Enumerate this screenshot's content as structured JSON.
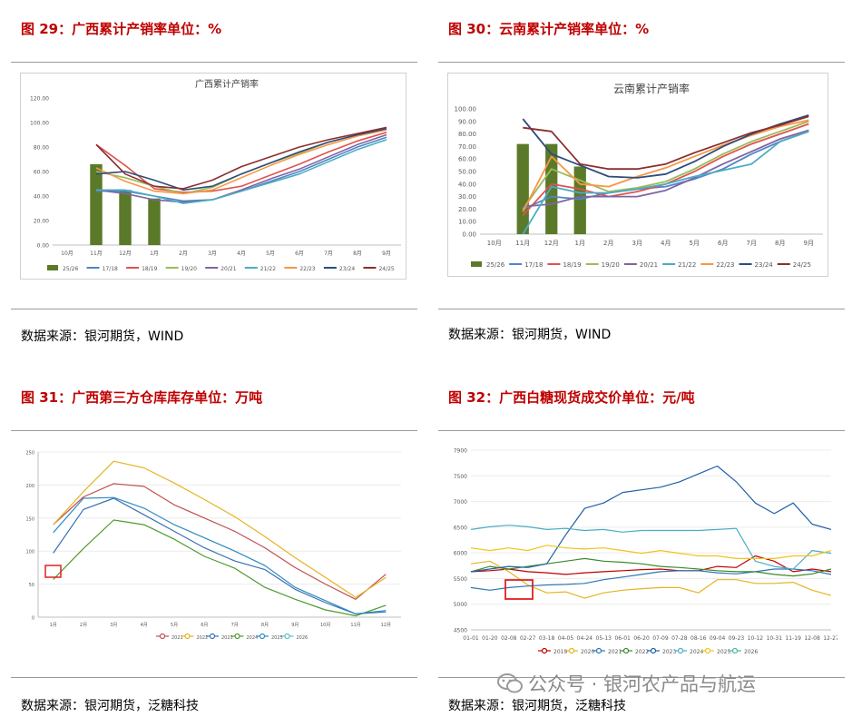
{
  "figures": [
    {
      "title": "图 29：广西累计产销率单位：%",
      "source": "数据来源：银河期货，WIND"
    },
    {
      "title": "图 30：云南累计产销率单位：%",
      "source": "数据来源：银河期货，WIND"
    },
    {
      "title": "图 31：广西第三方仓库库存单位：万吨",
      "source": "数据来源：银河期货，泛糖科技"
    },
    {
      "title": "图 32：广西白糖现货成交价单位：元/吨",
      "source": "数据来源：银河期货，泛糖科技"
    }
  ],
  "watermark": "公众号 · 银河农产品与航运",
  "chart_data": [
    {
      "type": "line",
      "title": "广西累计产销率",
      "categories": [
        "10月",
        "11月",
        "12月",
        "1月",
        "2月",
        "3月",
        "4月",
        "5月",
        "6月",
        "7月",
        "8月",
        "9月"
      ],
      "ylim": [
        0,
        120
      ],
      "yticks": [
        "0.00",
        "20.00",
        "40.00",
        "60.00",
        "80.00",
        "100.00",
        "120.00"
      ],
      "bar_series": {
        "name": "25/26",
        "color": "#5a7a2a",
        "values": [
          null,
          66,
          45,
          38,
          null,
          null,
          null,
          null,
          null,
          null,
          null,
          null
        ]
      },
      "series": [
        {
          "name": "17/18",
          "color": "#4f86c6",
          "values": [
            null,
            44,
            44,
            40,
            36,
            37,
            44,
            52,
            60,
            70,
            80,
            88
          ]
        },
        {
          "name": "18/19",
          "color": "#e0534f",
          "values": [
            null,
            82,
            65,
            46,
            43,
            44,
            48,
            57,
            66,
            76,
            85,
            92
          ]
        },
        {
          "name": "19/20",
          "color": "#9bbb59",
          "values": [
            null,
            60,
            55,
            48,
            42,
            47,
            58,
            67,
            75,
            84,
            90,
            94
          ]
        },
        {
          "name": "20/21",
          "color": "#8064a2",
          "values": [
            null,
            45,
            42,
            37,
            35,
            37,
            45,
            54,
            62,
            72,
            82,
            90
          ]
        },
        {
          "name": "21/22",
          "color": "#4bacc6",
          "values": [
            null,
            45,
            45,
            40,
            34,
            37,
            44,
            51,
            58,
            68,
            78,
            86
          ]
        },
        {
          "name": "22/23",
          "color": "#f79646",
          "values": [
            null,
            63,
            52,
            44,
            42,
            45,
            55,
            65,
            74,
            82,
            89,
            94
          ]
        },
        {
          "name": "23/24",
          "color": "#2e4d7b",
          "values": [
            null,
            58,
            60,
            53,
            45,
            48,
            58,
            67,
            76,
            84,
            90,
            95
          ]
        },
        {
          "name": "24/25",
          "color": "#8b2e2e",
          "values": [
            null,
            82,
            58,
            48,
            46,
            53,
            64,
            72,
            80,
            86,
            91,
            96
          ]
        }
      ],
      "legend": "bottom"
    },
    {
      "type": "line",
      "title": "云南累计产销率",
      "categories": [
        "10月",
        "11月",
        "12月",
        "1月",
        "2月",
        "3月",
        "4月",
        "5月",
        "6月",
        "7月",
        "8月",
        "9月"
      ],
      "ylim": [
        0,
        100
      ],
      "yticks": [
        "0.00",
        "10.00",
        "20.00",
        "30.00",
        "40.00",
        "50.00",
        "60.00",
        "70.00",
        "80.00",
        "90.00",
        "100.00"
      ],
      "bar_series": {
        "name": "25/26",
        "color": "#5a7a2a",
        "values": [
          null,
          72,
          72,
          54,
          null,
          null,
          null,
          null,
          null,
          null,
          null,
          null
        ]
      },
      "series": [
        {
          "name": "17/18",
          "color": "#4f86c6",
          "values": [
            null,
            20,
            30,
            28,
            33,
            36,
            38,
            44,
            52,
            64,
            74,
            82
          ]
        },
        {
          "name": "18/19",
          "color": "#e0534f",
          "values": [
            null,
            15,
            40,
            36,
            30,
            34,
            40,
            50,
            62,
            72,
            80,
            88
          ]
        },
        {
          "name": "19/20",
          "color": "#9bbb59",
          "values": [
            null,
            20,
            52,
            43,
            34,
            37,
            42,
            52,
            64,
            74,
            82,
            90
          ]
        },
        {
          "name": "20/21",
          "color": "#8064a2",
          "values": [
            null,
            22,
            24,
            30,
            30,
            30,
            35,
            45,
            56,
            66,
            76,
            83
          ]
        },
        {
          "name": "21/22",
          "color": "#4bacc6",
          "values": [
            null,
            0,
            38,
            33,
            33,
            36,
            40,
            46,
            51,
            56,
            74,
            82
          ]
        },
        {
          "name": "22/23",
          "color": "#f79646",
          "values": [
            null,
            18,
            62,
            40,
            38,
            46,
            53,
            62,
            71,
            79,
            86,
            91
          ]
        },
        {
          "name": "23/24",
          "color": "#2e4d7b",
          "values": [
            null,
            92,
            64,
            55,
            46,
            45,
            48,
            58,
            70,
            80,
            88,
            95
          ]
        },
        {
          "name": "24/25",
          "color": "#8b2e2e",
          "values": [
            null,
            85,
            82,
            56,
            52,
            52,
            56,
            65,
            73,
            81,
            87,
            94
          ]
        }
      ],
      "legend": "bottom"
    },
    {
      "type": "line",
      "categories": [
        "1月",
        "2月",
        "3月",
        "4月",
        "5月",
        "6月",
        "7月",
        "8月",
        "9月",
        "10月",
        "11月",
        "12月"
      ],
      "ylim": [
        0,
        250
      ],
      "yticks": [
        "0",
        "50",
        "100",
        "150",
        "200",
        "250"
      ],
      "series": [
        {
          "name": "2021",
          "color": "#c0504d",
          "values": [
            140,
            182,
            202,
            198,
            170,
            150,
            130,
            105,
            75,
            50,
            27,
            65
          ]
        },
        {
          "name": "2022",
          "color": "#e6b422",
          "values": [
            140,
            190,
            236,
            226,
            203,
            178,
            152,
            122,
            90,
            60,
            30,
            60
          ]
        },
        {
          "name": "2023",
          "color": "#3a70b5",
          "values": [
            97,
            163,
            180,
            155,
            130,
            105,
            85,
            72,
            42,
            22,
            5,
            8
          ]
        },
        {
          "name": "2024",
          "color": "#4e9a2e",
          "values": [
            57,
            104,
            147,
            140,
            118,
            92,
            74,
            45,
            27,
            11,
            2,
            18
          ]
        },
        {
          "name": "2025",
          "color": "#2e8bbf",
          "values": [
            128,
            180,
            181,
            165,
            140,
            120,
            100,
            78,
            45,
            25,
            5,
            10
          ]
        },
        {
          "name": "2026",
          "color": "#5bc0be",
          "values": [
            null,
            null,
            null,
            null,
            null,
            null,
            null,
            null,
            null,
            null,
            null,
            null
          ]
        }
      ],
      "legend": "bottom"
    },
    {
      "type": "line",
      "categories": [
        "01-01",
        "01-20",
        "02-08",
        "02-27",
        "03-18",
        "04-05",
        "04-24",
        "05-13",
        "06-01",
        "06-20",
        "07-09",
        "07-28",
        "08-16",
        "09-04",
        "09-23",
        "10-12",
        "10-31",
        "11-19",
        "12-08",
        "12-27"
      ],
      "ylim": [
        4500,
        7900
      ],
      "yticks": [
        "4500",
        "5000",
        "5500",
        "6000",
        "6500",
        "7000",
        "7500",
        "7900"
      ],
      "series": [
        {
          "name": "2019",
          "color": "#c00000",
          "values": [
            5600,
            5620,
            5650,
            5600,
            5580,
            5550,
            5580,
            5600,
            5620,
            5640,
            5650,
            5620,
            5620,
            5700,
            5680,
            5900,
            5800,
            5600,
            5650,
            5600
          ]
        },
        {
          "name": "2020",
          "color": "#e6b422",
          "values": [
            5750,
            5800,
            5600,
            5350,
            5200,
            5220,
            5100,
            5200,
            5250,
            5280,
            5300,
            5300,
            5200,
            5450,
            5450,
            5380,
            5380,
            5400,
            5250,
            5150
          ]
        },
        {
          "name": "2021",
          "color": "#2e75b6",
          "values": [
            5300,
            5250,
            5300,
            5330,
            5350,
            5360,
            5380,
            5450,
            5500,
            5550,
            5600,
            5620,
            5620,
            5580,
            5560,
            5600,
            5650,
            5650,
            5620,
            5550
          ]
        },
        {
          "name": "2022",
          "color": "#3a8a2a",
          "values": [
            5600,
            5700,
            5650,
            5700,
            5750,
            5800,
            5850,
            5800,
            5780,
            5750,
            5700,
            5680,
            5650,
            5620,
            5600,
            5600,
            5550,
            5520,
            5560,
            5650
          ]
        },
        {
          "name": "2023",
          "color": "#1f5fa8",
          "values": [
            5600,
            5650,
            5700,
            5680,
            5750,
            6300,
            6800,
            6900,
            7100,
            7150,
            7200,
            7300,
            7450,
            7600,
            7300,
            6900,
            6700,
            6900,
            6500,
            6400
          ]
        },
        {
          "name": "2024",
          "color": "#4bacc6",
          "values": [
            6400,
            6450,
            6480,
            6450,
            6400,
            6420,
            6380,
            6400,
            6350,
            6380,
            6380,
            6380,
            6380,
            6400,
            6420,
            5800,
            5700,
            5650,
            6000,
            5950
          ]
        },
        {
          "name": "2025",
          "color": "#f0c419",
          "values": [
            6050,
            6000,
            6050,
            6000,
            6100,
            6050,
            6030,
            6050,
            6000,
            5950,
            6000,
            5950,
            5900,
            5900,
            5850,
            5850,
            5850,
            5900,
            5900,
            6000
          ]
        },
        {
          "name": "2026",
          "color": "#4ab8a8",
          "values": [
            null,
            null,
            null,
            null,
            null,
            null,
            null,
            null,
            null,
            null,
            null,
            null,
            null,
            null,
            null,
            null,
            null,
            null,
            null,
            null
          ]
        }
      ],
      "legend": "bottom"
    }
  ]
}
